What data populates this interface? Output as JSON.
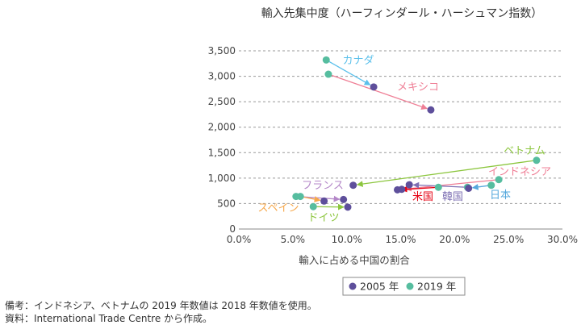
{
  "chart_data": {
    "type": "scatter",
    "title": "輸入先集中度（ハーフィンダール・ハーシュマン指数）",
    "xlabel": "輸入に占める中国の割合",
    "ylabel": "",
    "xlim": [
      0,
      0.3
    ],
    "ylim": [
      0,
      3500
    ],
    "x_ticks": [
      0,
      0.05,
      0.1,
      0.15,
      0.2,
      0.25,
      0.3
    ],
    "x_tick_labels": [
      "0.0%",
      "5.0%",
      "10.0%",
      "15.0%",
      "20.0%",
      "25.0%",
      "30.0%"
    ],
    "y_ticks": [
      0,
      500,
      1000,
      1500,
      2000,
      2500,
      3000,
      3500
    ],
    "y_tick_labels": [
      "0",
      "500",
      "1,000",
      "1,500",
      "2,000",
      "2,500",
      "3,000",
      "3,500"
    ],
    "grid": "horizontal-dashed",
    "legend_position": "bottom-right",
    "series": [
      {
        "name": "2005 年",
        "color": "#5e4f9b"
      },
      {
        "name": "2019 年",
        "color": "#56bd9f"
      }
    ],
    "countries": [
      {
        "label": "カナダ",
        "color": "#5bc0eb",
        "p2005": [
          0.125,
          2790
        ],
        "p2019": [
          0.081,
          3320
        ]
      },
      {
        "label": "メキシコ",
        "color": "#ef7f96",
        "p2005": [
          0.178,
          2340
        ],
        "p2019": [
          0.083,
          3040
        ]
      },
      {
        "label": "ベトナム",
        "color": "#8cc63e",
        "p2005": [
          0.106,
          860
        ],
        "p2019": [
          0.276,
          1350
        ]
      },
      {
        "label": "インドネシア",
        "color": "#ef7f96",
        "p2005": [
          0.151,
          780
        ],
        "p2019": [
          0.241,
          970
        ]
      },
      {
        "label": "フランス",
        "color": "#b487c8",
        "p2005": [
          0.097,
          580
        ],
        "p2019": [
          0.053,
          640
        ]
      },
      {
        "label": "米国",
        "color": "#e60012",
        "p2005": [
          0.147,
          770
        ],
        "p2019": [
          0.185,
          820
        ]
      },
      {
        "label": "韓国",
        "color": "#7d6fb3",
        "p2005": [
          0.158,
          870
        ],
        "p2019": [
          0.212,
          820
        ]
      },
      {
        "label": "日本",
        "color": "#56a8dc",
        "p2005": [
          0.213,
          800
        ],
        "p2019": [
          0.234,
          860
        ]
      },
      {
        "label": "スペイン",
        "color": "#f6a84c",
        "p2005": [
          0.079,
          550
        ],
        "p2019": [
          0.057,
          640
        ]
      },
      {
        "label": "ドイツ",
        "color": "#8cc63e",
        "p2005": [
          0.101,
          430
        ],
        "p2019": [
          0.069,
          440
        ]
      }
    ]
  },
  "notes": [
    "備考：インドネシア、ベトナムの 2019 年数値は 2018 年数値を使用。",
    "資料：International Trade Centre から作成。"
  ]
}
